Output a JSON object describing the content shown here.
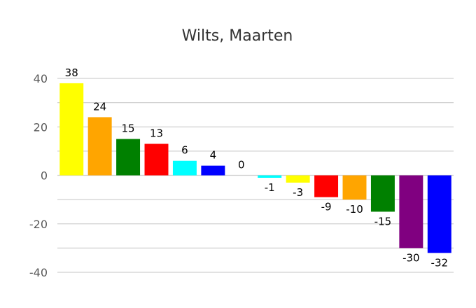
{
  "chart_data": {
    "type": "bar",
    "title": "Wilts, Maarten",
    "xlabel": "",
    "ylabel": "",
    "ylim": [
      -40,
      40
    ],
    "yticks": [
      40,
      20,
      0,
      -20,
      -40
    ],
    "grid": true,
    "legend": "none",
    "values": [
      38,
      24,
      15,
      13,
      6,
      4,
      0,
      -1,
      -3,
      -9,
      -10,
      -15,
      -30,
      -32
    ],
    "colors": [
      "#ffff00",
      "#ffa500",
      "#008000",
      "#ff0000",
      "#00ffff",
      "#0000ff",
      "#ffffff",
      "#00ffff",
      "#ffff00",
      "#ff0000",
      "#ffa500",
      "#008000",
      "#800080",
      "#0000ff"
    ]
  }
}
